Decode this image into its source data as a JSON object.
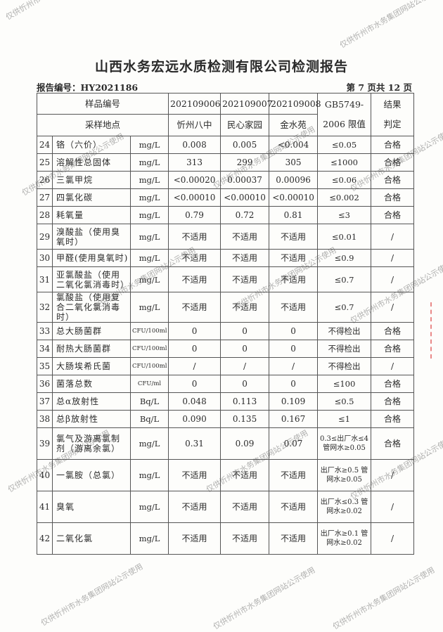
{
  "title": "山西水务宏远水质检测有限公司检测报告",
  "report_number": "报告编号：HY2021186",
  "page_info": "第 7 页共 12 页",
  "watermark": "仅供忻州市水务集团网站公示使用",
  "header": {
    "sample_id_label": "样品编号",
    "location_label": "采样地点",
    "samples": [
      {
        "id": "202109006",
        "location": "忻州八中"
      },
      {
        "id": "202109007",
        "location": "民心家园"
      },
      {
        "id": "202109008",
        "location": "金水苑"
      }
    ],
    "limit_label_1": "GB5749-",
    "limit_label_2": "2006 限值",
    "result_label_1": "结果",
    "result_label_2": "判定"
  },
  "rows": [
    {
      "no": "24",
      "name": "铬（六价）",
      "unit": "mg/L",
      "v": [
        "0.008",
        "0.005",
        "<0.004"
      ],
      "limit": "≤0.05",
      "result": "合格"
    },
    {
      "no": "25",
      "name": "溶解性总固体",
      "unit": "mg/L",
      "v": [
        "313",
        "299",
        "305"
      ],
      "limit": "≤1000",
      "result": "合格"
    },
    {
      "no": "26",
      "name": "三氯甲烷",
      "unit": "mg/L",
      "v": [
        "<0.00020",
        "0.00037",
        "0.00096"
      ],
      "limit": "≤0.06",
      "result": "合格"
    },
    {
      "no": "27",
      "name": "四氯化碳",
      "unit": "mg/L",
      "v": [
        "<0.00010",
        "<0.00010",
        "<0.00010"
      ],
      "limit": "≤0.002",
      "result": "合格"
    },
    {
      "no": "28",
      "name": "耗氧量",
      "unit": "mg/L",
      "v": [
        "0.79",
        "0.72",
        "0.81"
      ],
      "limit": "≤3",
      "result": "合格"
    },
    {
      "no": "29",
      "name": "溴酸盐（使用臭氧时）",
      "unit": "mg/L",
      "v": [
        "不适用",
        "不适用",
        "不适用"
      ],
      "limit": "≤0.01",
      "result": "/"
    },
    {
      "no": "30",
      "name": "甲醛(使用臭氧时)",
      "unit": "mg/L",
      "v": [
        "不适用",
        "不适用",
        "不适用"
      ],
      "limit": "≤0.9",
      "result": "/"
    },
    {
      "no": "31",
      "name": "亚氯酸盐（使用二氧化氯消毒时）",
      "unit": "mg/L",
      "v": [
        "不适用",
        "不适用",
        "不适用"
      ],
      "limit": "≤0.7",
      "result": "/"
    },
    {
      "no": "32",
      "name": "氯酸盐（使用复合二氧化氯消毒时）",
      "unit": "mg/L",
      "v": [
        "不适用",
        "不适用",
        "不适用"
      ],
      "limit": "≤0.7",
      "result": "/"
    },
    {
      "no": "33",
      "name": "总大肠菌群",
      "unit": "CFU/100ml",
      "v": [
        "0",
        "0",
        "0"
      ],
      "limit": "不得检出",
      "result": "合格"
    },
    {
      "no": "34",
      "name": "耐热大肠菌群",
      "unit": "CFU/100ml",
      "v": [
        "0",
        "0",
        "0"
      ],
      "limit": "不得检出",
      "result": "合格"
    },
    {
      "no": "35",
      "name": "大肠埃希氏菌",
      "unit": "CFU/100ml",
      "v": [
        "/",
        "/",
        "/"
      ],
      "limit": "不得检出",
      "result": "/"
    },
    {
      "no": "36",
      "name": "菌落总数",
      "unit": "CFU/ml",
      "v": [
        "0",
        "0",
        "0"
      ],
      "limit": "≤100",
      "result": "合格"
    },
    {
      "no": "37",
      "name": "总α放射性",
      "unit": "Bq/L",
      "v": [
        "0.048",
        "0.113",
        "0.109"
      ],
      "limit": "≤0.5",
      "result": "合格"
    },
    {
      "no": "38",
      "name": "总β放射性",
      "unit": "Bq/L",
      "v": [
        "0.090",
        "0.135",
        "0.167"
      ],
      "limit": "≤1",
      "result": "合格"
    },
    {
      "no": "39",
      "name": "氯气及游离氯制剂（游离余氯）",
      "unit": "mg/L",
      "v": [
        "0.31",
        "0.09",
        "0.07"
      ],
      "limit": "0.3≤出厂水≤4 管网水≥0.05",
      "result": "合格"
    },
    {
      "no": "40",
      "name": "一氯胺（总氯）",
      "unit": "mg/L",
      "v": [
        "不适用",
        "不适用",
        "不适用"
      ],
      "limit": "出厂水≥0.5 管网水≥0.05",
      "result": "/"
    },
    {
      "no": "41",
      "name": "臭氧",
      "unit": "mg/L",
      "v": [
        "不适用",
        "不适用",
        "不适用"
      ],
      "limit": "出厂水≤0.3 管网水≥0.02",
      "result": "/"
    },
    {
      "no": "42",
      "name": "二氧化氯",
      "unit": "mg/L",
      "v": [
        "不适用",
        "不适用",
        "不适用"
      ],
      "limit": "出厂水≥0.1 管网水≥0.02",
      "result": "/"
    }
  ]
}
